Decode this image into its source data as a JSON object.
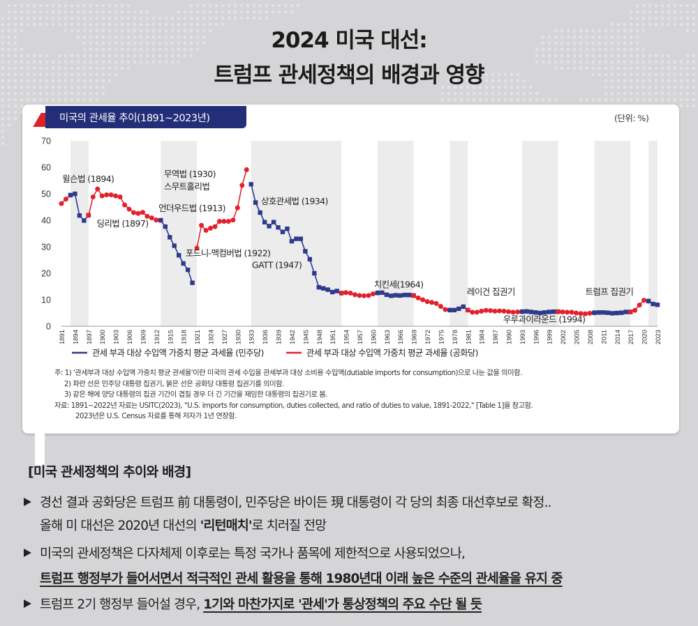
{
  "header": {
    "line1": "2024 미국 대선:",
    "line2": "트럼프 관세정책의 배경과 영향"
  },
  "chart_header": {
    "tab_title": "미국의 관세율 추이(1891~2023년)",
    "unit": "(단위: %)"
  },
  "chart_data": {
    "type": "line",
    "ylim": [
      0,
      70
    ],
    "yticks": [
      0,
      10,
      20,
      30,
      40,
      50,
      60,
      70
    ],
    "xlim": [
      1891,
      2023
    ],
    "x_tick_labels": [
      "1891",
      "1894",
      "1897",
      "1900",
      "1903",
      "1906",
      "1909",
      "1912",
      "1915",
      "1918",
      "1921",
      "1924",
      "1927",
      "1930",
      "1933",
      "1936",
      "1939",
      "1942",
      "1945",
      "1948",
      "1951",
      "1954",
      "1957",
      "1960",
      "1963",
      "1966",
      "1969",
      "1972",
      "1975",
      "1978",
      "1981",
      "1984",
      "1987",
      "1990",
      "1993",
      "1996",
      "1999",
      "2002",
      "2005",
      "2008",
      "2011",
      "2014",
      "2017",
      "2020",
      "2023"
    ],
    "colors": {
      "democrat": "#2e3a8c",
      "republican": "#e3212b",
      "shade": "#ececec"
    },
    "democrat_periods": [
      [
        1893,
        1897
      ],
      [
        1913,
        1921
      ],
      [
        1933,
        1953
      ],
      [
        1961,
        1969
      ],
      [
        1977,
        1981
      ],
      [
        1993,
        2001
      ],
      [
        2009,
        2017
      ],
      [
        2021,
        2023
      ]
    ],
    "segments": [
      {
        "party": "republican",
        "points": [
          [
            1891,
            46.3
          ],
          [
            1892,
            48.0
          ],
          [
            1893,
            49.5
          ]
        ]
      },
      {
        "party": "democrat",
        "points": [
          [
            1893,
            49.5
          ],
          [
            1894,
            50.0
          ],
          [
            1895,
            41.8
          ],
          [
            1896,
            39.9
          ],
          [
            1897,
            41.9
          ]
        ]
      },
      {
        "party": "republican",
        "points": [
          [
            1897,
            41.9
          ],
          [
            1898,
            48.8
          ],
          [
            1899,
            51.8
          ],
          [
            1900,
            49.2
          ],
          [
            1901,
            49.6
          ],
          [
            1902,
            49.6
          ],
          [
            1903,
            49.2
          ],
          [
            1904,
            48.8
          ],
          [
            1905,
            45.8
          ],
          [
            1906,
            44.2
          ],
          [
            1907,
            42.9
          ],
          [
            1908,
            42.6
          ],
          [
            1909,
            43.0
          ],
          [
            1910,
            41.5
          ],
          [
            1911,
            40.9
          ],
          [
            1912,
            40.1
          ],
          [
            1913,
            40.0
          ]
        ]
      },
      {
        "party": "democrat",
        "points": [
          [
            1913,
            40.0
          ],
          [
            1914,
            37.6
          ],
          [
            1915,
            33.6
          ],
          [
            1916,
            30.4
          ],
          [
            1917,
            26.8
          ],
          [
            1918,
            23.7
          ],
          [
            1919,
            21.3
          ],
          [
            1920,
            16.4
          ]
        ]
      },
      {
        "party": "republican",
        "points": [
          [
            1921,
            29.5
          ],
          [
            1922,
            38.1
          ],
          [
            1923,
            36.2
          ],
          [
            1924,
            37.0
          ],
          [
            1925,
            37.6
          ],
          [
            1926,
            39.6
          ],
          [
            1927,
            39.6
          ],
          [
            1928,
            39.6
          ],
          [
            1929,
            40.1
          ],
          [
            1930,
            44.7
          ],
          [
            1931,
            53.2
          ],
          [
            1932,
            59.1
          ]
        ]
      },
      {
        "party": "democrat",
        "points": [
          [
            1933,
            53.6
          ],
          [
            1934,
            46.7
          ],
          [
            1935,
            42.9
          ],
          [
            1936,
            39.3
          ],
          [
            1937,
            37.8
          ],
          [
            1938,
            39.3
          ],
          [
            1939,
            37.3
          ],
          [
            1940,
            35.6
          ],
          [
            1941,
            36.8
          ],
          [
            1942,
            32.1
          ],
          [
            1943,
            33.0
          ],
          [
            1944,
            33.0
          ],
          [
            1945,
            28.3
          ],
          [
            1946,
            25.3
          ],
          [
            1947,
            20.0
          ],
          [
            1948,
            14.7
          ],
          [
            1949,
            14.3
          ],
          [
            1950,
            13.8
          ],
          [
            1951,
            12.9
          ],
          [
            1952,
            13.3
          ],
          [
            1953,
            12.5
          ]
        ]
      },
      {
        "party": "republican",
        "points": [
          [
            1953,
            12.5
          ],
          [
            1954,
            12.7
          ],
          [
            1955,
            12.5
          ],
          [
            1956,
            11.9
          ],
          [
            1957,
            11.6
          ],
          [
            1958,
            11.5
          ],
          [
            1959,
            11.6
          ],
          [
            1960,
            12.2
          ],
          [
            1961,
            12.6
          ]
        ]
      },
      {
        "party": "democrat",
        "points": [
          [
            1961,
            12.6
          ],
          [
            1962,
            12.7
          ],
          [
            1963,
            11.9
          ],
          [
            1964,
            11.5
          ],
          [
            1965,
            11.7
          ],
          [
            1966,
            11.6
          ],
          [
            1967,
            11.8
          ],
          [
            1968,
            11.8
          ],
          [
            1969,
            11.6
          ]
        ]
      },
      {
        "party": "republican",
        "points": [
          [
            1969,
            11.6
          ],
          [
            1970,
            10.7
          ],
          [
            1971,
            10.0
          ],
          [
            1972,
            9.3
          ],
          [
            1973,
            9.0
          ],
          [
            1974,
            8.6
          ],
          [
            1975,
            7.5
          ],
          [
            1976,
            6.3
          ],
          [
            1977,
            6.1
          ]
        ]
      },
      {
        "party": "democrat",
        "points": [
          [
            1977,
            6.1
          ],
          [
            1978,
            6.1
          ],
          [
            1979,
            6.6
          ],
          [
            1980,
            7.4
          ],
          [
            1981,
            6.1
          ]
        ]
      },
      {
        "party": "republican",
        "points": [
          [
            1981,
            6.1
          ],
          [
            1982,
            5.3
          ],
          [
            1983,
            5.3
          ],
          [
            1984,
            5.7
          ],
          [
            1985,
            6.0
          ],
          [
            1986,
            5.9
          ],
          [
            1987,
            5.7
          ],
          [
            1988,
            5.8
          ],
          [
            1989,
            5.7
          ],
          [
            1990,
            5.5
          ],
          [
            1991,
            5.3
          ],
          [
            1992,
            5.4
          ],
          [
            1993,
            5.5
          ]
        ]
      },
      {
        "party": "democrat",
        "points": [
          [
            1993,
            5.5
          ],
          [
            1994,
            5.6
          ],
          [
            1995,
            5.4
          ],
          [
            1996,
            5.2
          ],
          [
            1997,
            5.0
          ],
          [
            1998,
            5.2
          ],
          [
            1999,
            5.4
          ],
          [
            2000,
            5.5
          ],
          [
            2001,
            5.5
          ]
        ]
      },
      {
        "party": "republican",
        "points": [
          [
            2001,
            5.5
          ],
          [
            2002,
            5.4
          ],
          [
            2003,
            5.3
          ],
          [
            2004,
            5.3
          ],
          [
            2005,
            5.0
          ],
          [
            2006,
            4.8
          ],
          [
            2007,
            4.7
          ],
          [
            2008,
            4.9
          ],
          [
            2009,
            5.1
          ]
        ]
      },
      {
        "party": "democrat",
        "points": [
          [
            2009,
            5.1
          ],
          [
            2010,
            5.2
          ],
          [
            2011,
            5.2
          ],
          [
            2012,
            5.1
          ],
          [
            2013,
            4.9
          ],
          [
            2014,
            5.0
          ],
          [
            2015,
            5.1
          ],
          [
            2016,
            5.4
          ],
          [
            2017,
            5.4
          ]
        ]
      },
      {
        "party": "republican",
        "points": [
          [
            2017,
            5.4
          ],
          [
            2018,
            6.0
          ],
          [
            2019,
            8.0
          ],
          [
            2020,
            9.8
          ],
          [
            2021,
            9.5
          ]
        ]
      },
      {
        "party": "democrat",
        "points": [
          [
            2021,
            9.5
          ],
          [
            2022,
            8.4
          ],
          [
            2023,
            8.1
          ]
        ]
      }
    ],
    "annotations": [
      {
        "text": "윌슨법 (1894)",
        "x": 1891.2,
        "y": 54.5
      },
      {
        "text": "딩리법 (1897)",
        "x": 1898.8,
        "y": 37.6
      },
      {
        "text": "무역법 (1930)",
        "x": 1913.7,
        "y": 56.3
      },
      {
        "text": "스무트홀리법",
        "x": 1913.7,
        "y": 51.6
      },
      {
        "text": "언더우드법 (1913)",
        "x": 1912.5,
        "y": 43.4
      },
      {
        "text": "포드니-맥컴버법 (1922)",
        "x": 1918.5,
        "y": 26.4
      },
      {
        "text": "상호관세법 (1934)",
        "x": 1935.2,
        "y": 46.0
      },
      {
        "text": "GATT (1947)",
        "x": 1933.2,
        "y": 22.0
      },
      {
        "text": "치킨세(1964)",
        "x": 1960.2,
        "y": 14.6
      },
      {
        "text": "레이건 집권기",
        "x": 1980.8,
        "y": 11.9
      },
      {
        "text": "우루과이라운드 (1994)",
        "x": 1988.8,
        "y": 1.4
      },
      {
        "text": "트럼프 집권기",
        "x": 2007.0,
        "y": 11.9
      }
    ],
    "legend": [
      {
        "label": "관세 부과 대상 수입액 가중치 평균 과세율 (민주당)",
        "party": "democrat"
      },
      {
        "label": "관세 부과 대상 수입액 가중치 평균 과세율 (공화당)",
        "party": "republican"
      }
    ],
    "legend_position": "bottom"
  },
  "notes": [
    "주: 1) '관세부과 대상 수입액 가중치 평균 관세율'이란 미국의 관세 수입을 관세부과 대상 소비용 수입액(dutiable imports for consumption)으로 나눈 값을 의미함.",
    "2) 파란 선은 민주당 대통령 집권기, 붉은 선은 공화당 대통령 집권기를 의미함.",
    "3) 같은 해에 양당 대통령의 집권 기간이 겹칠 경우 더 긴 기간을 재임한 대통령의 집권기로 봄.",
    "자료: 1891~2022년 자료는 USITC(2023), \"U.S. imports for consumption, duties collected, and ratio of duties to value, 1891-2022,\" [Table 1]을 참고함.",
    "2023년은 U.S. Census 자료를 통해 저자가 1년 연장함."
  ],
  "section": {
    "title": "[미국 관세정책의 추이와 배경]",
    "b1_l1": "경선 결과 공화당은 트럼프 前 대통령이, 민주당은 바이든 現 대통령이 각 당의  최종 대선후보로 확정..",
    "b1_l2a": "올해 미 대선은 2020년 대선의 ",
    "b1_l2b": "'리턴매치'",
    "b1_l2c": "로 치러질 전망",
    "b2_l1": "미국의 관세정책은 다자체제 이후로는 특정 국가나 품목에 제한적으로 사용되었으나,",
    "b2_l2": "트럼프 행정부가 들어서면서 적극적인 관세 활용을 통해  1980년대 이래 높은 수준의 관세율을 유지 중",
    "b3_a": "트럼프 2기 행정부 들어설 경우, ",
    "b3_b": "1기와 마찬가지로 '관세'가 통상정책의 주요 수단 될 듯"
  }
}
